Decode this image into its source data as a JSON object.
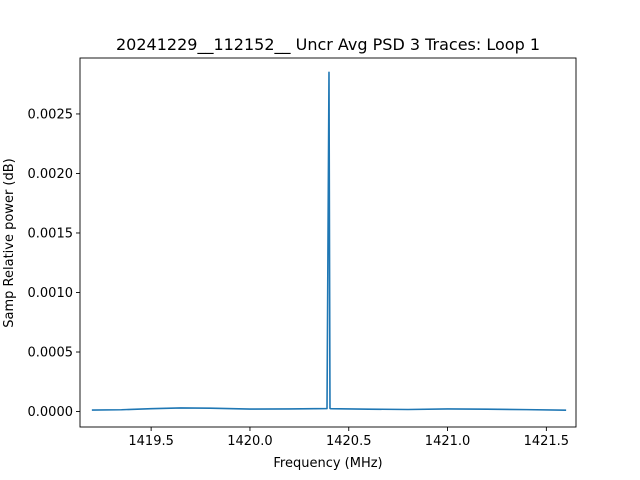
{
  "chart_data": {
    "type": "line",
    "title": "20241229__112152__  Uncr Avg PSD 3 Traces: Loop 1",
    "xlabel": "Frequency (MHz)",
    "ylabel": "Samp Relative power (dB)",
    "xlim": [
      1419.14,
      1421.65
    ],
    "ylim": [
      -0.00013,
      0.00297
    ],
    "grid": false,
    "line_color": "#1f77b4",
    "x_ticks": [
      {
        "value": 1419.5,
        "label": "1419.5"
      },
      {
        "value": 1420.0,
        "label": "1420.0"
      },
      {
        "value": 1420.5,
        "label": "1420.5"
      },
      {
        "value": 1421.0,
        "label": "1421.0"
      },
      {
        "value": 1421.5,
        "label": "1421.5"
      }
    ],
    "y_ticks": [
      {
        "value": 0.0,
        "label": "0.0000"
      },
      {
        "value": 0.0005,
        "label": "0.0005"
      },
      {
        "value": 0.001,
        "label": "0.0010"
      },
      {
        "value": 0.0015,
        "label": "0.0015"
      },
      {
        "value": 0.002,
        "label": "0.0020"
      },
      {
        "value": 0.0025,
        "label": "0.0025"
      }
    ],
    "series": [
      {
        "x": [
          1419.2,
          1419.35,
          1419.5,
          1419.65,
          1419.8,
          1420.0,
          1420.2,
          1420.39,
          1420.4,
          1420.405,
          1420.41,
          1420.6,
          1420.8,
          1421.0,
          1421.2,
          1421.4,
          1421.6
        ],
        "values": [
          1.2e-05,
          1.5e-05,
          2.4e-05,
          3e-05,
          2.8e-05,
          2.1e-05,
          2.2e-05,
          2.5e-05,
          0.00285,
          2.6e-05,
          2.4e-05,
          2e-05,
          1.7e-05,
          2.2e-05,
          2e-05,
          1.6e-05,
          1.1e-05
        ]
      }
    ]
  }
}
